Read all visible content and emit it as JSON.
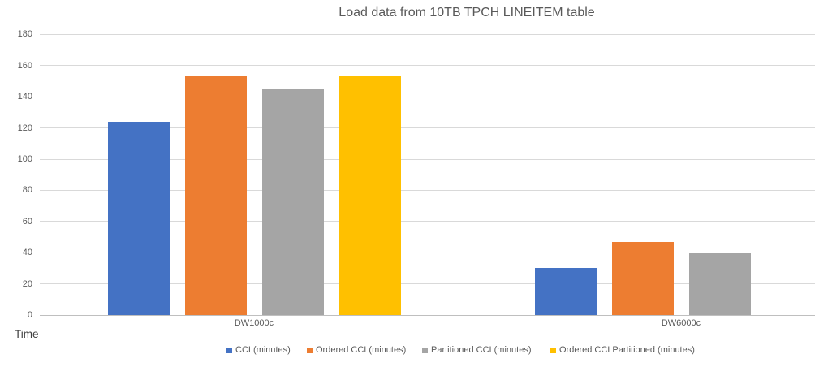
{
  "title": "Load data from 10TB TPCH LINEITEM table",
  "chart_data": {
    "type": "bar",
    "title": "Load data from 10TB TPCH LINEITEM table",
    "categories": [
      "DW1000c",
      "DW6000c"
    ],
    "series": [
      {
        "name": "CCI (minutes)",
        "color": "#4472C4",
        "values": [
          124,
          30
        ]
      },
      {
        "name": "Ordered CCI (minutes)",
        "color": "#ED7D31",
        "values": [
          153,
          47
        ]
      },
      {
        "name": "Partitioned CCI (minutes)",
        "color": "#A5A5A5",
        "values": [
          145,
          40
        ]
      },
      {
        "name": "Ordered CCI Partitioned (minutes)",
        "color": "#FFC000",
        "values": [
          153,
          null
        ]
      }
    ],
    "xlabel": "",
    "ylabel": "Time",
    "ylim": [
      0,
      180
    ],
    "yticks": [
      0,
      20,
      40,
      60,
      80,
      100,
      120,
      140,
      160,
      180
    ],
    "grid": true,
    "legend_position": "bottom",
    "text_color": "#595959",
    "gridline_color": "#D9D9D9",
    "axis_line_color": "#BFBFBF",
    "background_color": "#FFFFFF"
  }
}
